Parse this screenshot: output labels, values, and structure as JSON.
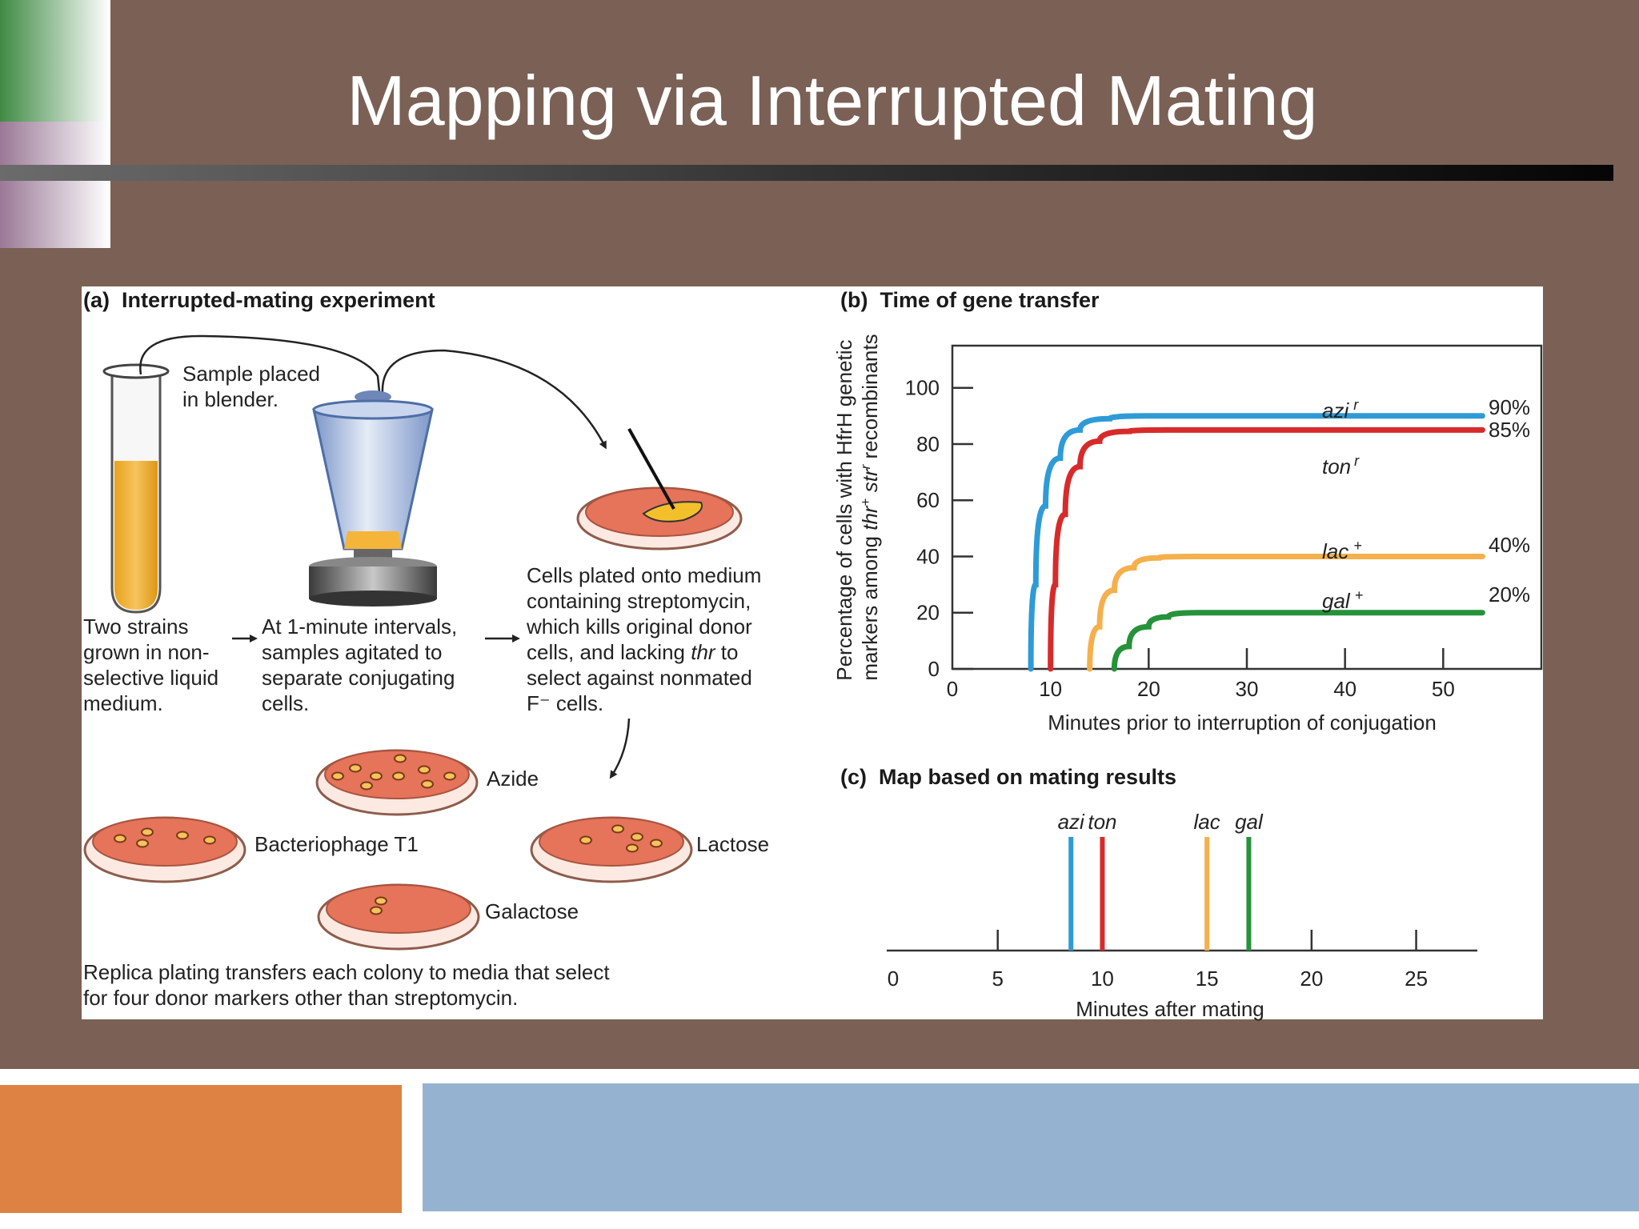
{
  "slide": {
    "title": "Mapping via Interrupted Mating",
    "colors": {
      "background": "#7a6055",
      "rule": "#1a1a1a",
      "panel": "#ffffff",
      "accent_orange": "#de8243",
      "accent_blue": "#95b3d0",
      "corner_green": "#4e8a44",
      "corner_mauve": "#a886a0"
    }
  },
  "panel_a": {
    "heading": "(a)  Interrupted-mating experiment",
    "sample_label": [
      "Sample placed",
      "in blender."
    ],
    "step1": [
      "Two strains",
      "grown in non-",
      "selective liquid",
      "medium."
    ],
    "step2": [
      "At 1-minute intervals,",
      "samples agitated to",
      "separate conjugating",
      "cells."
    ],
    "step3": {
      "line1": "Cells plated onto medium",
      "line2": "containing streptomycin,",
      "line3": "which kills original donor",
      "line4_a": "cells, and lacking ",
      "line4_b": "thr",
      "line4_c": " to",
      "line5": "select against nonmated",
      "line6": "F⁻ cells."
    },
    "plates": {
      "azide": "Azide",
      "phage": "Bacteriophage T1",
      "lactose": "Lactose",
      "galactose": "Galactose"
    },
    "footer": [
      "Replica plating transfers each colony to media that select",
      "for four donor markers other than streptomycin."
    ],
    "icons": [
      "test-tube-icon",
      "blender-icon",
      "petri-dish-icon",
      "inoculating-loop-icon",
      "arrow-icon"
    ]
  },
  "panel_b": {
    "heading": "(b)  Time of gene transfer",
    "ylabel_line1": "Percentage of cells with HfrH genetic",
    "ylabel_line2": {
      "a": "markers among ",
      "b": "thr",
      "c": "+",
      "d": " ",
      "e": "str",
      "f": "r",
      "g": " recombinants"
    },
    "xlabel": "Minutes prior to interruption of conjugation",
    "pct_labels": [
      "90%",
      "85%",
      "40%",
      "20%"
    ],
    "curve_labels": [
      {
        "name": "azi",
        "sup": "r"
      },
      {
        "name": "ton",
        "sup": "r"
      },
      {
        "name": "lac",
        "sup": "+"
      },
      {
        "name": "gal",
        "sup": "+"
      }
    ]
  },
  "panel_c": {
    "heading": "(c)  Map based on mating results",
    "xlabel": "Minutes after mating",
    "gene_labels": [
      "azi",
      "ton",
      "lac",
      "gal"
    ]
  },
  "chart_data": [
    {
      "type": "line",
      "x_ticks": [
        "0",
        "10",
        "20",
        "30",
        "40",
        "50"
      ],
      "y_ticks": [
        "0",
        "20",
        "40",
        "60",
        "80",
        "100"
      ],
      "xlim": [
        0,
        60
      ],
      "ylim": [
        0,
        115
      ],
      "grid": false,
      "series": [
        {
          "name": "azi r",
          "color": "#2e9bd6",
          "start": 8,
          "plateau": 90,
          "end": 54,
          "points": [
            [
              8,
              0
            ],
            [
              8.5,
              30
            ],
            [
              9.5,
              58
            ],
            [
              11,
              75
            ],
            [
              13,
              85
            ],
            [
              16,
              89
            ],
            [
              20,
              90
            ],
            [
              30,
              90
            ],
            [
              40,
              90
            ],
            [
              54,
              90
            ]
          ]
        },
        {
          "name": "ton r",
          "color": "#d72b2b",
          "start": 10,
          "plateau": 85,
          "end": 54,
          "points": [
            [
              10,
              0
            ],
            [
              10.5,
              30
            ],
            [
              11.5,
              55
            ],
            [
              13,
              72
            ],
            [
              15,
              81
            ],
            [
              18,
              84.5
            ],
            [
              22,
              85
            ],
            [
              30,
              85
            ],
            [
              40,
              85
            ],
            [
              54,
              85
            ]
          ]
        },
        {
          "name": "lac +",
          "color": "#f4b04d",
          "start": 14,
          "plateau": 40,
          "end": 54,
          "points": [
            [
              14,
              0
            ],
            [
              15,
              15
            ],
            [
              16.5,
              28
            ],
            [
              18.5,
              36
            ],
            [
              21,
              39.5
            ],
            [
              25,
              40
            ],
            [
              40,
              40
            ],
            [
              54,
              40
            ]
          ]
        },
        {
          "name": "gal +",
          "color": "#26923a",
          "start": 16.5,
          "plateau": 20,
          "end": 54,
          "points": [
            [
              16.5,
              0
            ],
            [
              18,
              8
            ],
            [
              20,
              15
            ],
            [
              22,
              18.5
            ],
            [
              25,
              20
            ],
            [
              40,
              20
            ],
            [
              54,
              20
            ]
          ]
        }
      ]
    },
    {
      "type": "line",
      "x_ticks": [
        "0",
        "5",
        "10",
        "15",
        "20",
        "25"
      ],
      "xlim": [
        0,
        28
      ],
      "series": [
        {
          "name": "azi",
          "color": "#2e9bd6",
          "minutes": 8.5
        },
        {
          "name": "ton",
          "color": "#d72b2b",
          "minutes": 10
        },
        {
          "name": "lac",
          "color": "#f4b04d",
          "minutes": 15
        },
        {
          "name": "gal",
          "color": "#26923a",
          "minutes": 17
        }
      ]
    }
  ]
}
